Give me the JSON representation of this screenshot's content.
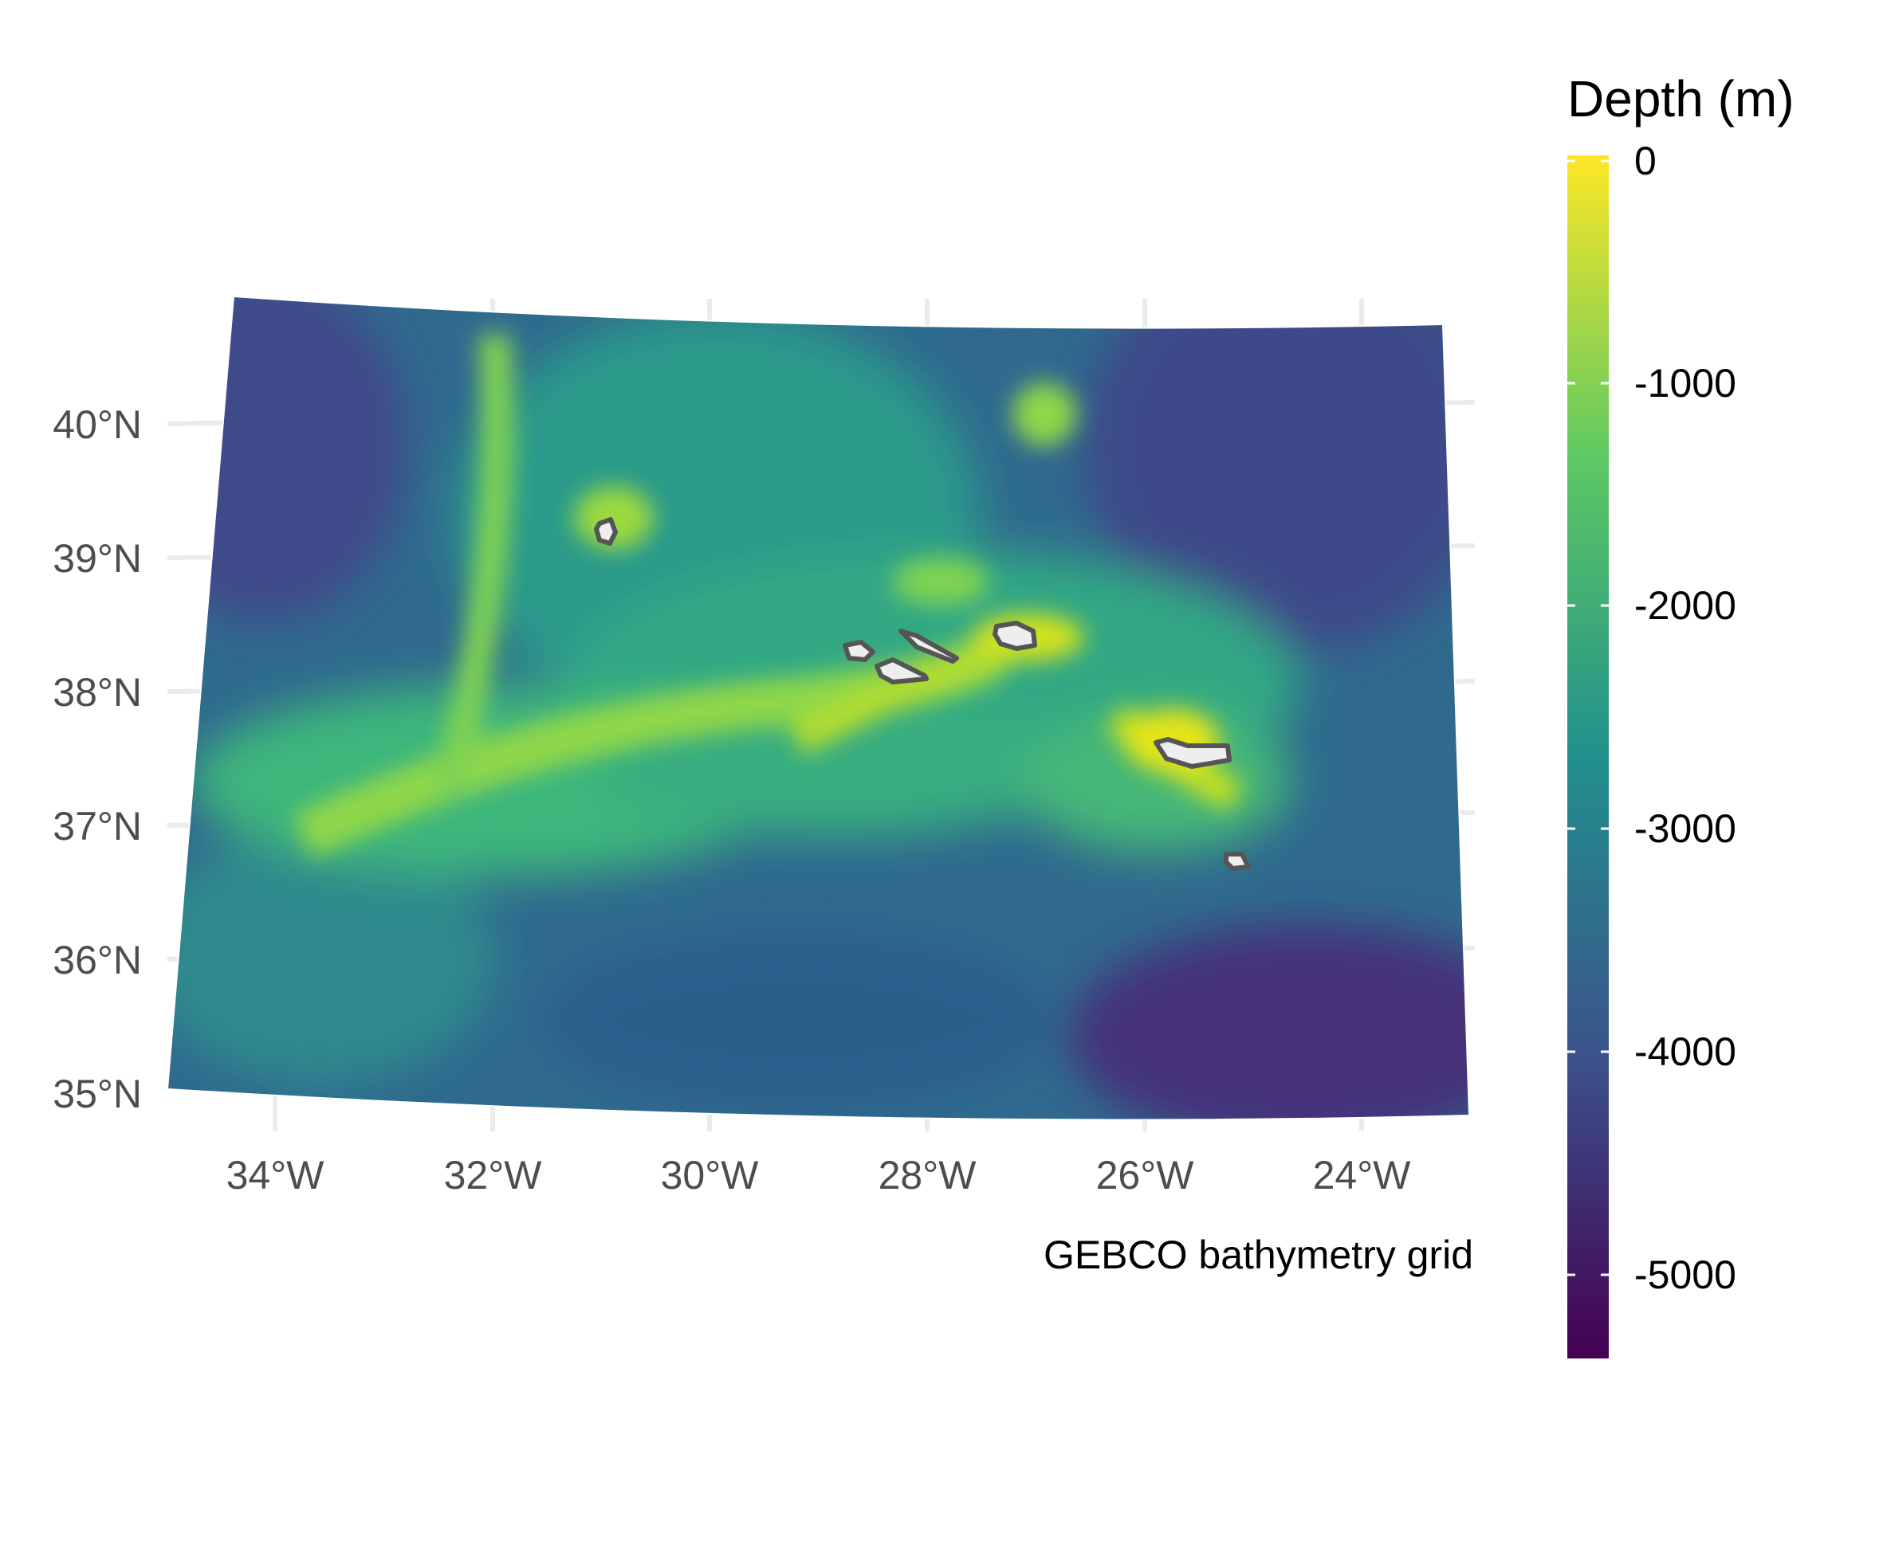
{
  "legend": {
    "title": "Depth (m)",
    "ticks": [
      {
        "value": 0,
        "label": "0"
      },
      {
        "value": -1000,
        "label": "-1000"
      },
      {
        "value": -2000,
        "label": "-2000"
      },
      {
        "value": -3000,
        "label": "-3000"
      },
      {
        "value": -4000,
        "label": "-4000"
      },
      {
        "value": -5000,
        "label": "-5000"
      }
    ],
    "range": [
      -5400,
      0
    ],
    "colors": [
      "#440154",
      "#3b528b",
      "#21908c",
      "#5ec962",
      "#fde725"
    ]
  },
  "caption": "GEBCO bathymetry grid",
  "axes": {
    "longitude_ticks": [
      {
        "value": -34,
        "label": "34°W"
      },
      {
        "value": -32,
        "label": "32°W"
      },
      {
        "value": -30,
        "label": "30°W"
      },
      {
        "value": -28,
        "label": "28°W"
      },
      {
        "value": -26,
        "label": "26°W"
      },
      {
        "value": -24,
        "label": "24°W"
      }
    ],
    "latitude_ticks": [
      {
        "value": 35,
        "label": "35°N"
      },
      {
        "value": 36,
        "label": "36°N"
      },
      {
        "value": 37,
        "label": "37°N"
      },
      {
        "value": 38,
        "label": "38°N"
      },
      {
        "value": 39,
        "label": "39°N"
      },
      {
        "value": 40,
        "label": "40°N"
      }
    ]
  },
  "map": {
    "land_fill": "#eeeeee",
    "coast_stroke": "#555555",
    "grid_color": "#ebebeb"
  }
}
